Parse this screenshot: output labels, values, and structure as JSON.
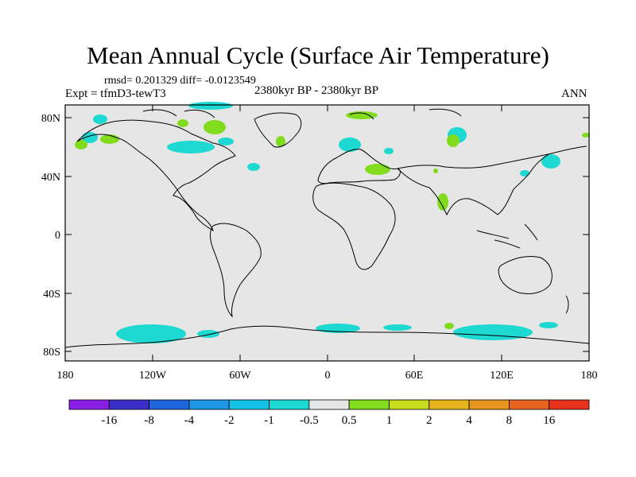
{
  "header": {
    "title": "Mean Annual Cycle (Surface Air Temperature)",
    "stats": "rmsd= 0.201329 diff= -0.0123549",
    "experiment": "Expt = tfmD3-tewT3",
    "period": "2380kyr BP - 2380kyr BP",
    "season": "ANN"
  },
  "axes": {
    "lat_labels": [
      "80N",
      "40N",
      "0",
      "40S",
      "80S"
    ],
    "lon_labels": [
      "180",
      "120W",
      "60W",
      "0",
      "60E",
      "120E",
      "180"
    ]
  },
  "colorbar": {
    "labels": [
      "-16",
      "-8",
      "-4",
      "-2",
      "-1",
      "-0.5",
      "0.5",
      "1",
      "2",
      "4",
      "8",
      "16"
    ],
    "colors": [
      "#8a1ee6",
      "#3a2ec8",
      "#1e64dc",
      "#1e96e6",
      "#14c0e6",
      "#1ed8d2",
      "#e6e6e6",
      "#82dc1e",
      "#c8dc1e",
      "#e6b41e",
      "#e6961e",
      "#e6641e",
      "#e6321e"
    ]
  },
  "colors": {
    "ocean": "#e6e6e6",
    "cool_anomaly": "#1ed8d2",
    "warm_anomaly": "#82dc1e"
  }
}
